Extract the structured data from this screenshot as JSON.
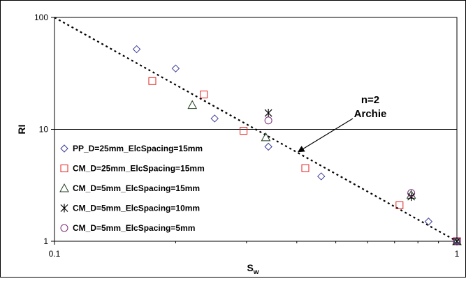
{
  "chart_data": {
    "type": "scatter",
    "title": "",
    "xlabel": "S",
    "xlabel_sub": "w",
    "ylabel": "RI",
    "xscale": "log",
    "yscale": "log",
    "xlim": [
      0.1,
      1
    ],
    "ylim": [
      1,
      100
    ],
    "x_ticks": [
      {
        "value": 0.1,
        "label": "0.1"
      },
      {
        "value": 1,
        "label": "1"
      }
    ],
    "y_ticks": [
      {
        "value": 1,
        "label": "1"
      },
      {
        "value": 10,
        "label": "10"
      },
      {
        "value": 100,
        "label": "100"
      }
    ],
    "grid": {
      "major_y": true,
      "major_x": false
    },
    "legend_position": "left",
    "series": [
      {
        "name": "PP_D=25mm_ElcSpacing=15mm",
        "marker": "diamond",
        "color": "#3b3b9a",
        "points": [
          [
            0.16,
            52
          ],
          [
            0.2,
            35
          ],
          [
            0.25,
            12.5
          ],
          [
            0.34,
            7
          ],
          [
            0.46,
            3.8
          ],
          [
            0.85,
            1.5
          ],
          [
            1.0,
            1.0
          ]
        ]
      },
      {
        "name": "CM_D=25mm_ElcSpacing=15mm",
        "marker": "square",
        "color": "#e02020",
        "points": [
          [
            0.175,
            27
          ],
          [
            0.235,
            20.5
          ],
          [
            0.295,
            9.7
          ],
          [
            0.42,
            4.5
          ],
          [
            0.72,
            2.1
          ],
          [
            1.0,
            1.0
          ]
        ]
      },
      {
        "name": "CM_D=5mm_ElcSpacing=15mm",
        "marker": "triangle",
        "color": "#1f3f1f",
        "points": [
          [
            0.22,
            16.5
          ],
          [
            0.335,
            8.5
          ],
          [
            0.77,
            2.6
          ],
          [
            1.0,
            1.0
          ]
        ]
      },
      {
        "name": "CM_D=5mm_ElcSpacing=10mm",
        "marker": "star",
        "color": "#000000",
        "points": [
          [
            0.34,
            14
          ],
          [
            0.77,
            2.5
          ],
          [
            1.0,
            1.0
          ]
        ]
      },
      {
        "name": "CM_D=5mm_ElcSpacing=5mm",
        "marker": "circle",
        "color": "#7a2a7a",
        "points": [
          [
            0.34,
            12
          ],
          [
            0.77,
            2.7
          ],
          [
            1.0,
            1.0
          ]
        ]
      }
    ],
    "trendline": {
      "type": "power",
      "exponent": -2,
      "label": "n=2 Archie",
      "points": [
        [
          0.1,
          100
        ],
        [
          1.0,
          1.0
        ]
      ],
      "style": "dotted"
    },
    "annotations": [
      {
        "text_lines": [
          "n=2",
          "Archie"
        ],
        "arrow_to": [
          0.4,
          6.3
        ]
      }
    ]
  }
}
